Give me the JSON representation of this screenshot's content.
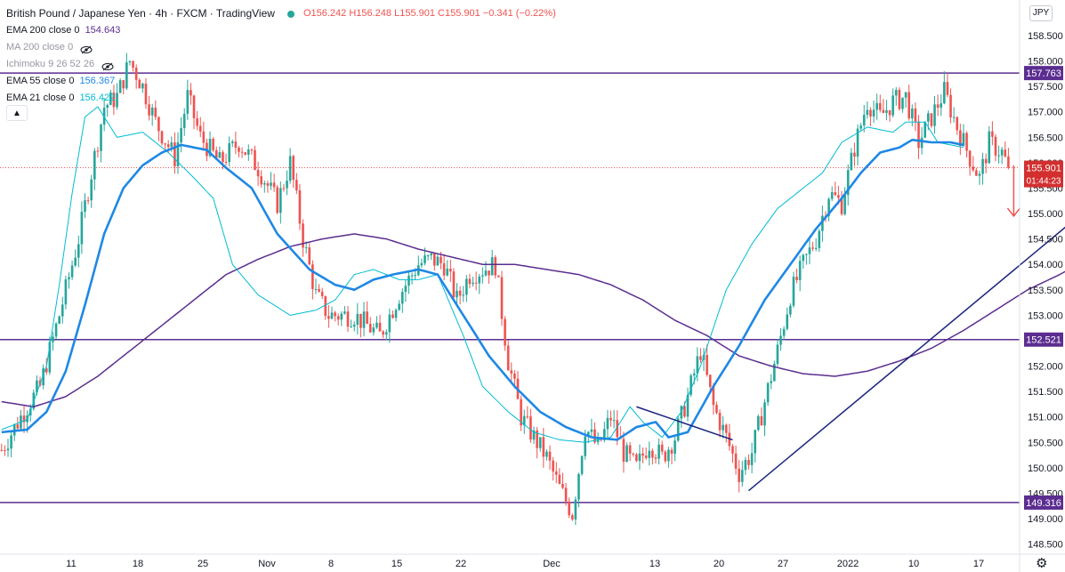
{
  "header": {
    "title": "British Pound / Japanese Yen · 4h · FXCM · TradingView",
    "ohlc": "O156.242 H156.248 L155.901 C155.901 −0.341 (−0.22%)"
  },
  "indicators": [
    {
      "label": "EMA 200 close 0",
      "value": "154.643",
      "color": "#5b2d90",
      "hidden": false
    },
    {
      "label": "MA 200 close 0",
      "value": "",
      "color": "#9598a1",
      "hidden": true
    },
    {
      "label": "Ichimoku 9 26 52 26",
      "value": "",
      "color": "#9598a1",
      "hidden": true
    },
    {
      "label": "EMA 55 close 0",
      "value": "156.367",
      "color": "#1e88e5",
      "hidden": false
    },
    {
      "label": "EMA 21 close 0",
      "value": "156.422",
      "color": "#00bcd4",
      "hidden": false
    }
  ],
  "currency_button": "JPY",
  "collapse_icon": "chevron-up-icon",
  "settings_icon": "gear-icon",
  "price_label": {
    "price": "155.901",
    "countdown": "01:44:23"
  },
  "colors": {
    "up": "#26a69a",
    "down": "#ef5350",
    "level": "#5b2d90",
    "ema55": "#1e88e5",
    "ema21": "#00bcd4",
    "ema200": "#5b2d90",
    "trend": "#1a237e",
    "arrow": "#ef5350"
  },
  "chart_data": {
    "type": "candlestick",
    "ylim": [
      148.3,
      159.2
    ],
    "y_ticks": [
      "158.500",
      "158.000",
      "157.500",
      "157.000",
      "156.500",
      "156.000",
      "155.500",
      "155.000",
      "154.500",
      "154.000",
      "153.500",
      "153.000",
      "152.500",
      "152.000",
      "151.500",
      "151.000",
      "150.500",
      "150.000",
      "149.500",
      "149.000",
      "148.500"
    ],
    "x_ticks": [
      "11",
      "18",
      "25",
      "Nov",
      "8",
      "15",
      "22",
      "Dec",
      "13",
      "20",
      "27",
      "2022",
      "10",
      "17"
    ],
    "levels": [
      157.763,
      152.521,
      149.316
    ],
    "last_price": 155.901,
    "ema21_anchors": [
      [
        0,
        150.75
      ],
      [
        8,
        150.95
      ],
      [
        14,
        152.0
      ],
      [
        18,
        153.6
      ],
      [
        22,
        155.4
      ],
      [
        26,
        156.9
      ],
      [
        30,
        157.1
      ],
      [
        36,
        156.5
      ],
      [
        44,
        156.6
      ],
      [
        52,
        156.2
      ],
      [
        60,
        155.7
      ],
      [
        66,
        155.3
      ],
      [
        72,
        154.0
      ],
      [
        80,
        153.4
      ],
      [
        90,
        153.0
      ],
      [
        98,
        153.1
      ],
      [
        104,
        153.3
      ],
      [
        110,
        153.8
      ],
      [
        116,
        153.9
      ],
      [
        124,
        153.7
      ],
      [
        130,
        153.7
      ],
      [
        136,
        153.8
      ],
      [
        144,
        152.6
      ],
      [
        150,
        151.6
      ],
      [
        158,
        151.1
      ],
      [
        166,
        150.7
      ],
      [
        174,
        150.55
      ],
      [
        182,
        150.5
      ],
      [
        190,
        150.6
      ],
      [
        196,
        151.2
      ],
      [
        200,
        150.9
      ],
      [
        206,
        150.6
      ],
      [
        212,
        151.1
      ],
      [
        218,
        152.0
      ],
      [
        226,
        153.5
      ],
      [
        234,
        154.4
      ],
      [
        242,
        155.1
      ],
      [
        250,
        155.5
      ],
      [
        256,
        155.8
      ],
      [
        262,
        156.4
      ],
      [
        270,
        156.7
      ],
      [
        278,
        156.6
      ],
      [
        282,
        156.8
      ],
      [
        288,
        156.8
      ],
      [
        292,
        156.4
      ],
      [
        300,
        156.3
      ]
    ],
    "ema55_anchors": [
      [
        0,
        150.7
      ],
      [
        8,
        150.75
      ],
      [
        14,
        151.1
      ],
      [
        20,
        151.9
      ],
      [
        26,
        153.2
      ],
      [
        32,
        154.6
      ],
      [
        38,
        155.5
      ],
      [
        44,
        155.95
      ],
      [
        50,
        156.2
      ],
      [
        56,
        156.35
      ],
      [
        64,
        156.25
      ],
      [
        70,
        155.9
      ],
      [
        78,
        155.5
      ],
      [
        86,
        154.6
      ],
      [
        96,
        153.9
      ],
      [
        104,
        153.6
      ],
      [
        110,
        153.5
      ],
      [
        116,
        153.7
      ],
      [
        122,
        153.8
      ],
      [
        130,
        153.9
      ],
      [
        136,
        153.8
      ],
      [
        144,
        153.0
      ],
      [
        152,
        152.2
      ],
      [
        160,
        151.6
      ],
      [
        168,
        151.1
      ],
      [
        176,
        150.8
      ],
      [
        184,
        150.6
      ],
      [
        192,
        150.55
      ],
      [
        198,
        150.8
      ],
      [
        204,
        150.9
      ],
      [
        208,
        150.6
      ],
      [
        214,
        150.7
      ],
      [
        222,
        151.6
      ],
      [
        230,
        152.4
      ],
      [
        238,
        153.3
      ],
      [
        246,
        154.0
      ],
      [
        254,
        154.7
      ],
      [
        262,
        155.3
      ],
      [
        268,
        155.8
      ],
      [
        274,
        156.2
      ],
      [
        280,
        156.3
      ],
      [
        284,
        156.45
      ],
      [
        290,
        156.4
      ],
      [
        296,
        156.4
      ],
      [
        300,
        156.35
      ]
    ],
    "ema200_anchors": [
      [
        0,
        151.3
      ],
      [
        10,
        151.2
      ],
      [
        20,
        151.4
      ],
      [
        30,
        151.8
      ],
      [
        40,
        152.3
      ],
      [
        50,
        152.8
      ],
      [
        60,
        153.3
      ],
      [
        70,
        153.8
      ],
      [
        80,
        154.1
      ],
      [
        90,
        154.35
      ],
      [
        100,
        154.5
      ],
      [
        110,
        154.6
      ],
      [
        120,
        154.5
      ],
      [
        130,
        154.3
      ],
      [
        140,
        154.15
      ],
      [
        150,
        154.0
      ],
      [
        160,
        154.0
      ],
      [
        170,
        153.9
      ],
      [
        180,
        153.8
      ],
      [
        190,
        153.6
      ],
      [
        200,
        153.3
      ],
      [
        210,
        152.9
      ],
      [
        220,
        152.6
      ],
      [
        230,
        152.2
      ],
      [
        240,
        152.0
      ],
      [
        250,
        151.85
      ],
      [
        260,
        151.8
      ],
      [
        270,
        151.9
      ],
      [
        280,
        152.1
      ],
      [
        290,
        152.35
      ],
      [
        300,
        152.7
      ],
      [
        310,
        153.1
      ],
      [
        320,
        153.5
      ],
      [
        330,
        153.8
      ],
      [
        340,
        154.15
      ],
      [
        350,
        154.4
      ],
      [
        356,
        154.6
      ]
    ],
    "price_anchors": [
      [
        0,
        150.35
      ],
      [
        6,
        151.0
      ],
      [
        12,
        151.6
      ],
      [
        18,
        153.0
      ],
      [
        24,
        154.5
      ],
      [
        28,
        155.8
      ],
      [
        32,
        157.1
      ],
      [
        36,
        157.3
      ],
      [
        40,
        158.0
      ],
      [
        44,
        157.5
      ],
      [
        48,
        156.8
      ],
      [
        54,
        156.1
      ],
      [
        58,
        157.3
      ],
      [
        62,
        156.5
      ],
      [
        68,
        156.0
      ],
      [
        74,
        156.4
      ],
      [
        80,
        155.9
      ],
      [
        86,
        155.2
      ],
      [
        90,
        156.0
      ],
      [
        94,
        154.5
      ],
      [
        98,
        153.4
      ],
      [
        102,
        153.0
      ],
      [
        110,
        153.0
      ],
      [
        118,
        152.6
      ],
      [
        124,
        153.4
      ],
      [
        130,
        154.0
      ],
      [
        134,
        154.1
      ],
      [
        138,
        154.0
      ],
      [
        142,
        153.3
      ],
      [
        146,
        153.8
      ],
      [
        150,
        153.9
      ],
      [
        154,
        154.0
      ],
      [
        158,
        152.1
      ],
      [
        162,
        151.0
      ],
      [
        166,
        150.6
      ],
      [
        170,
        150.2
      ],
      [
        174,
        149.6
      ],
      [
        178,
        149.1
      ],
      [
        182,
        150.8
      ],
      [
        186,
        150.4
      ],
      [
        190,
        151.0
      ],
      [
        194,
        150.3
      ],
      [
        198,
        150.0
      ],
      [
        202,
        150.5
      ],
      [
        206,
        150.2
      ],
      [
        210,
        150.6
      ],
      [
        214,
        151.4
      ],
      [
        218,
        152.3
      ],
      [
        222,
        151.2
      ],
      [
        226,
        150.6
      ],
      [
        230,
        149.9
      ],
      [
        234,
        150.3
      ],
      [
        238,
        151.3
      ],
      [
        242,
        152.3
      ],
      [
        246,
        153.4
      ],
      [
        250,
        154.0
      ],
      [
        254,
        154.5
      ],
      [
        258,
        155.4
      ],
      [
        262,
        155.2
      ],
      [
        266,
        156.3
      ],
      [
        270,
        157.2
      ],
      [
        274,
        156.9
      ],
      [
        278,
        157.2
      ],
      [
        282,
        157.3
      ],
      [
        286,
        156.4
      ],
      [
        290,
        156.9
      ],
      [
        294,
        157.4
      ],
      [
        298,
        156.7
      ],
      [
        302,
        156.1
      ],
      [
        305,
        155.7
      ],
      [
        308,
        156.4
      ],
      [
        312,
        156.2
      ],
      [
        314,
        155.9
      ]
    ],
    "trendlines": [
      {
        "from": [
          233,
          149.55
        ],
        "to": [
          355,
          155.95
        ]
      },
      {
        "from": [
          198,
          151.2
        ],
        "to": [
          228,
          150.55
        ]
      }
    ]
  }
}
